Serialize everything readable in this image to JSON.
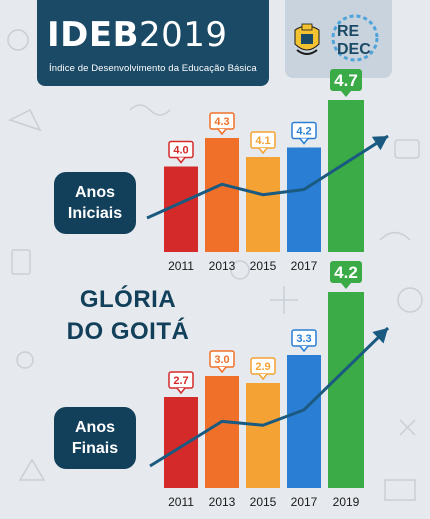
{
  "header": {
    "title_bold": "IDEB",
    "title_year": "2019",
    "subtitle": "Índice de Desenvolvimento da Educação Básica"
  },
  "logos": {
    "redec_top": "RE",
    "redec_bottom": "DEC"
  },
  "municipality": {
    "line1": "GLÓRIA",
    "line2": "DO GOITÁ"
  },
  "colors": {
    "navy": "#123f5a",
    "arrow": "#1b5a80",
    "red": "#d42a2a",
    "orange": "#f0702a",
    "amber": "#f4a234",
    "blue": "#2a7fd4",
    "green": "#3aab47"
  },
  "chart_data": [
    {
      "type": "bar",
      "group_label_line1": "Anos",
      "group_label_line2": "Iniciais",
      "categories": [
        "2011",
        "2013",
        "2015",
        "2017",
        "2019"
      ],
      "values": [
        4.0,
        4.3,
        4.1,
        4.2,
        4.7
      ],
      "value_labels": [
        "4.0",
        "4.3",
        "4.1",
        "4.2",
        "4.7"
      ],
      "bar_colors": [
        "#d42a2a",
        "#f0702a",
        "#f4a234",
        "#2a7fd4",
        "#3aab47"
      ]
    },
    {
      "type": "bar",
      "group_label_line1": "Anos",
      "group_label_line2": "Finais",
      "categories": [
        "2011",
        "2013",
        "2015",
        "2017",
        "2019"
      ],
      "values": [
        2.7,
        3.0,
        2.9,
        3.3,
        4.2
      ],
      "value_labels": [
        "2.7",
        "3.0",
        "2.9",
        "3.3",
        "4.2"
      ],
      "bar_colors": [
        "#d42a2a",
        "#f0702a",
        "#f4a234",
        "#2a7fd4",
        "#3aab47"
      ]
    }
  ]
}
